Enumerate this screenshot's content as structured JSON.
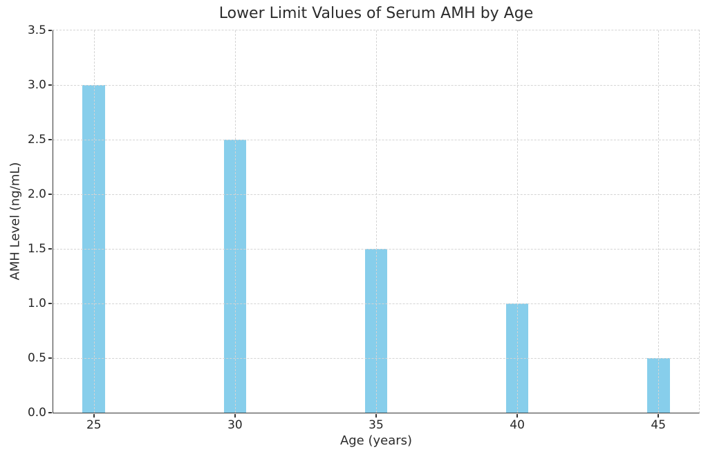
{
  "chart_data": {
    "type": "bar",
    "title": "Lower Limit Values of Serum AMH by Age",
    "xlabel": "Age (years)",
    "ylabel": "AMH Level (ng/mL)",
    "categories": [
      25,
      30,
      35,
      40,
      45
    ],
    "values": [
      3.0,
      2.5,
      1.5,
      1.0,
      0.5
    ],
    "xtick_labels": [
      "25",
      "30",
      "35",
      "40",
      "45"
    ],
    "yticks": [
      0.0,
      0.5,
      1.0,
      1.5,
      2.0,
      2.5,
      3.0,
      3.5
    ],
    "ytick_labels": [
      "0.0",
      "0.5",
      "1.0",
      "1.5",
      "2.0",
      "2.5",
      "3.0",
      "3.5"
    ],
    "xlim": [
      23.56,
      46.44
    ],
    "ylim": [
      0,
      3.5
    ],
    "bar_width_data_units": 0.8,
    "bar_color": "#87CEEB",
    "grid": true,
    "grid_color": "#d4d4d4",
    "grid_style": "dashed",
    "spine_color": "#333333",
    "background_color": "#ffffff",
    "legend": "none"
  }
}
